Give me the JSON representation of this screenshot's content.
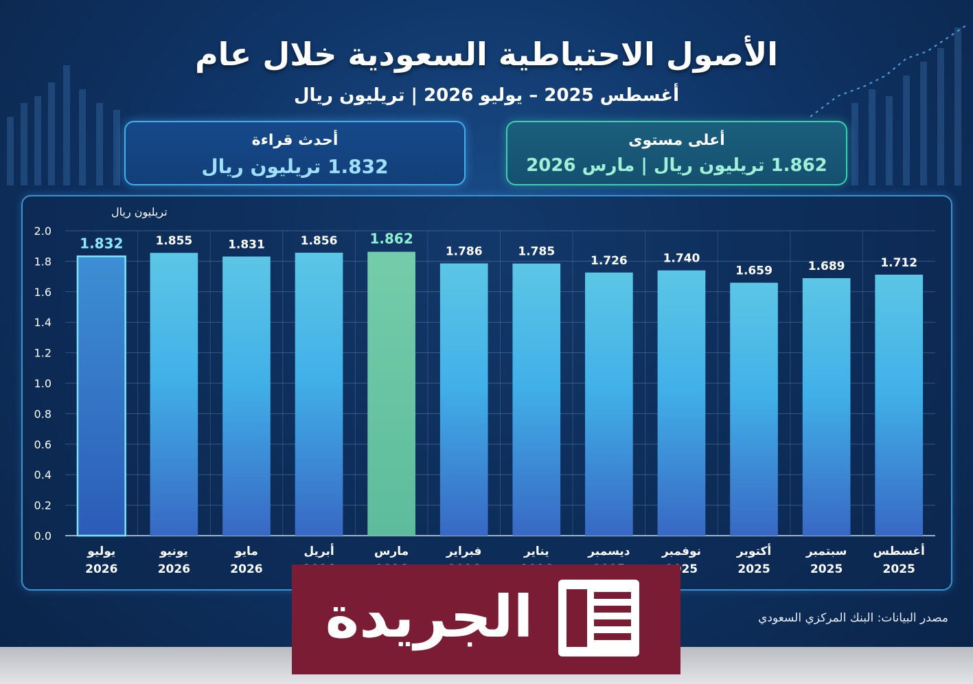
{
  "header": {
    "title": "الأصول الاحتياطية السعودية خلال عام",
    "subtitle": "أغسطس 2025 – يوليو 2026 | تريليون ريال"
  },
  "cards": {
    "latest": {
      "label": "أحدث قراءة",
      "value": "1.832 تريليون ريال"
    },
    "peak": {
      "label": "أعلى مستوى",
      "value": "1.862 تريليون ريال | مارس 2026"
    }
  },
  "source": "مصدر البيانات: البنك المركزي السعودي",
  "logo": {
    "text": "الجريدة"
  },
  "colors": {
    "bar": "#45b4e4",
    "peak_bar": "#6cc9a6",
    "latest_outline": "#7fe4ff"
  },
  "chart_data": {
    "type": "bar",
    "ylabel": "تريليون ريال",
    "ylim": [
      0,
      2.0
    ],
    "yticks": [
      "0.0",
      "0.2",
      "0.4",
      "0.6",
      "0.8",
      "1.0",
      "1.2",
      "1.4",
      "1.6",
      "1.8",
      "2.0"
    ],
    "categories": [
      [
        "يوليو",
        "2026"
      ],
      [
        "يونيو",
        "2026"
      ],
      [
        "مايو",
        "2026"
      ],
      [
        "أبريل",
        "2026"
      ],
      [
        "مارس",
        "2026"
      ],
      [
        "فبراير",
        "2026"
      ],
      [
        "يناير",
        "2026"
      ],
      [
        "ديسمبر",
        "2025"
      ],
      [
        "نوفمبر",
        "2025"
      ],
      [
        "أكتوبر",
        "2025"
      ],
      [
        "سبتمبر",
        "2025"
      ],
      [
        "أغسطس",
        "2025"
      ]
    ],
    "values": [
      1.832,
      1.855,
      1.831,
      1.856,
      1.862,
      1.786,
      1.785,
      1.726,
      1.74,
      1.659,
      1.689,
      1.712
    ],
    "value_labels": [
      "1.832",
      "1.855",
      "1.831",
      "1.856",
      "1.862",
      "1.786",
      "1.785",
      "1.726",
      "1.740",
      "1.659",
      "1.689",
      "1.712"
    ],
    "highlight_latest_index": 0,
    "highlight_peak_index": 4,
    "grid": true
  }
}
